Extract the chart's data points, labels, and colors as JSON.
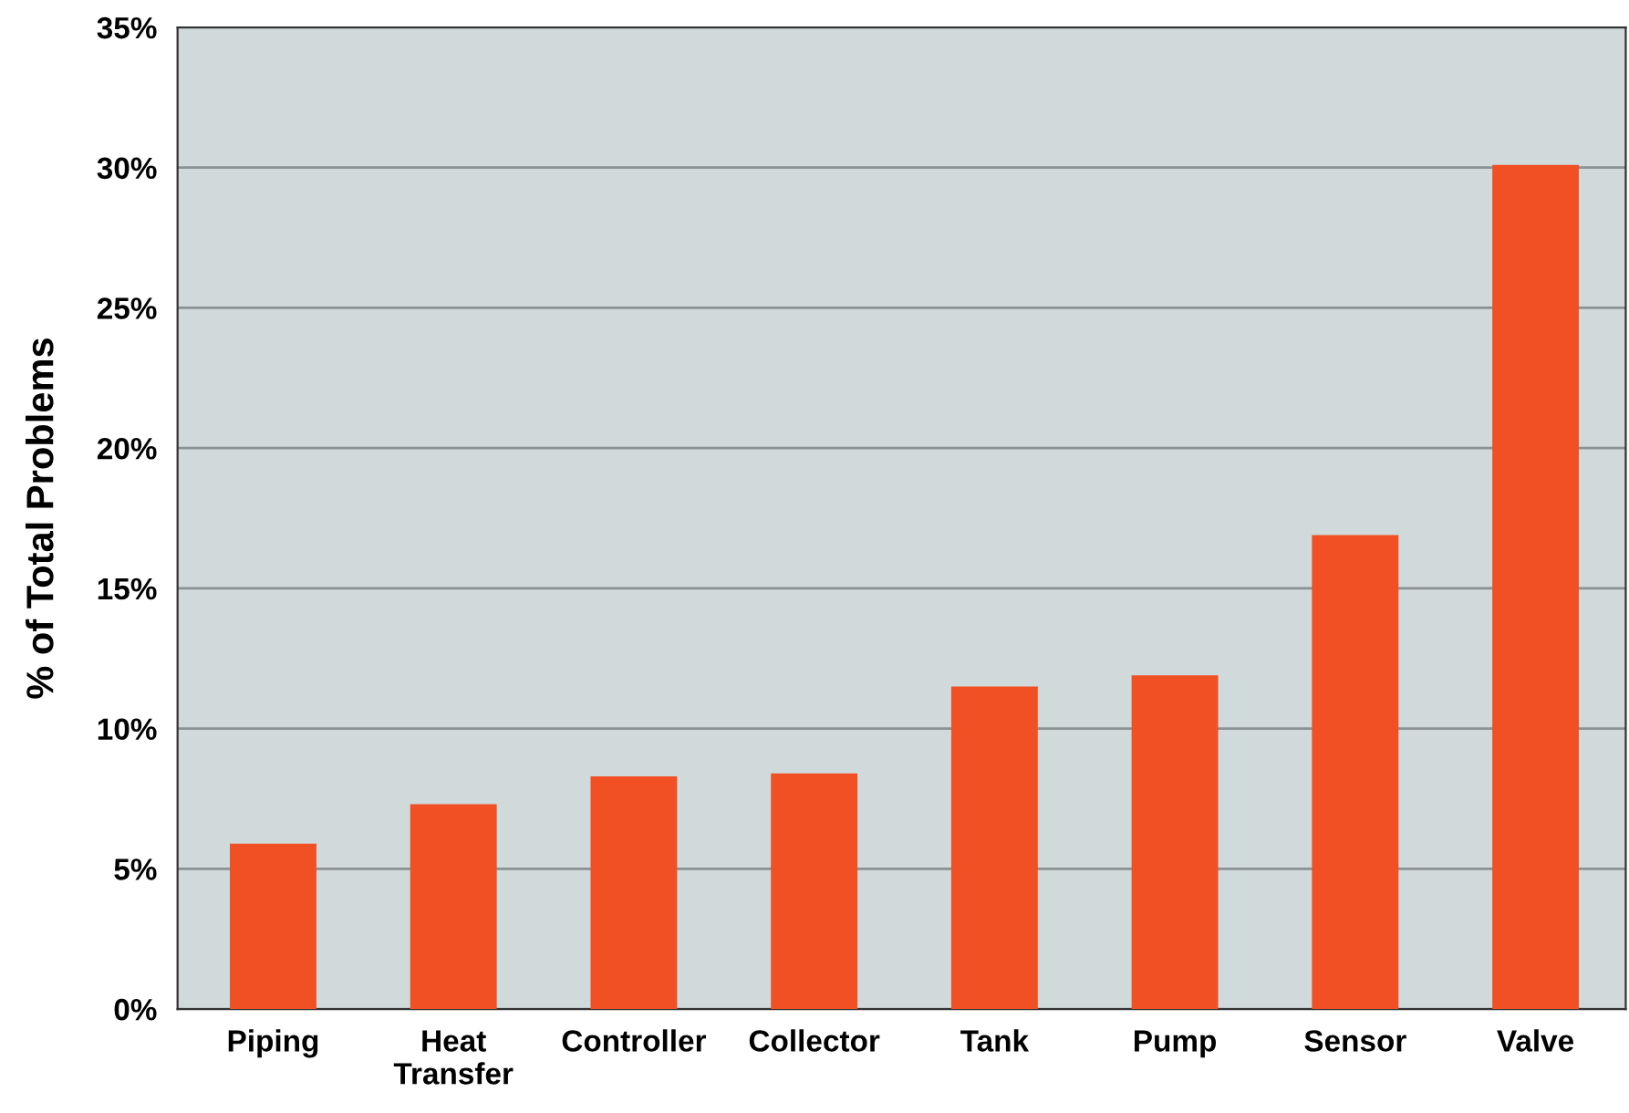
{
  "chart_data": {
    "type": "bar",
    "ylabel": "% of Total Problems",
    "categories": [
      "Piping",
      "Heat\nTransfer",
      "Controller",
      "Collector",
      "Tank",
      "Pump",
      "Sensor",
      "Valve"
    ],
    "values": [
      5.9,
      7.3,
      8.3,
      8.4,
      11.5,
      11.9,
      16.9,
      30.1
    ],
    "color": "#f05023",
    "ylim": [
      0,
      35
    ],
    "yticks": [
      {
        "value": 0,
        "label": "0%"
      },
      {
        "value": 5,
        "label": "5%"
      },
      {
        "value": 10,
        "label": "10%"
      },
      {
        "value": 15,
        "label": "15%"
      },
      {
        "value": 20,
        "label": "20%"
      },
      {
        "value": 25,
        "label": "25%"
      },
      {
        "value": 30,
        "label": "30%"
      },
      {
        "value": 35,
        "label": "35%"
      }
    ],
    "grid": "y"
  }
}
